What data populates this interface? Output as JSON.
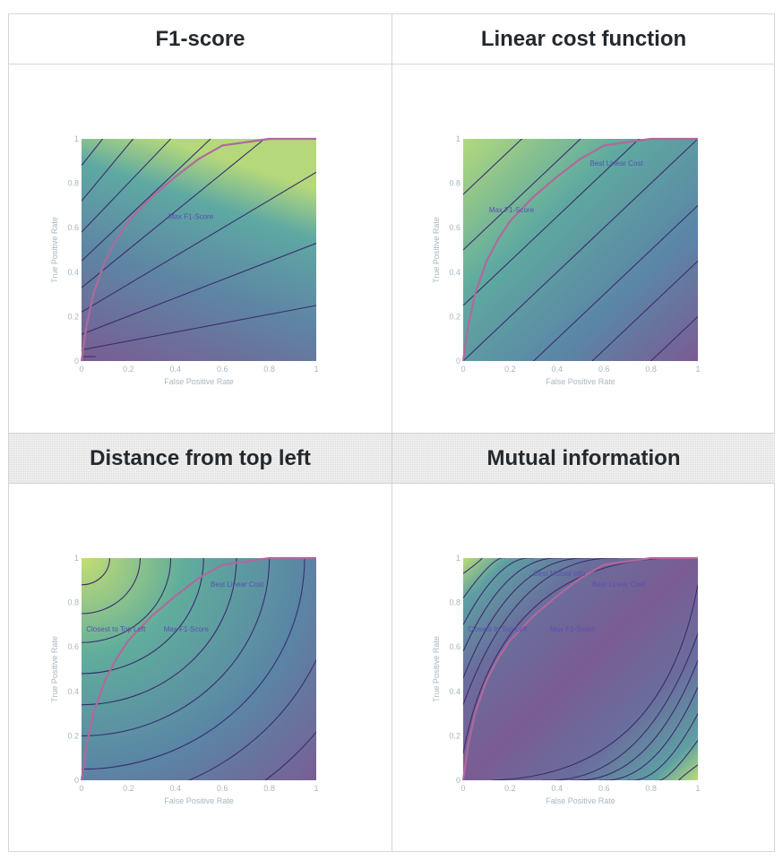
{
  "panels": [
    {
      "header": "F1-score"
    },
    {
      "header": "Linear cost function"
    },
    {
      "header": "Distance from top left"
    },
    {
      "header": "Mutual information"
    }
  ],
  "colors": {
    "text": "#24292e",
    "border": "#d6d6d6",
    "axis_text": "#a7b7bf",
    "contour": "#3b2d6e",
    "roc_curve": "#b0699a",
    "annotation": "#5a4fb0"
  },
  "chart_data": [
    {
      "type": "heatmap",
      "xlabel": "False Positive Rate",
      "ylabel": "True Positive Rate",
      "xlim": [
        0,
        1
      ],
      "ylim": [
        0,
        1
      ],
      "ticks": [
        "0",
        "0.2",
        "0.4",
        "0.6",
        "0.8",
        "1"
      ],
      "roc_curve": {
        "x": [
          0,
          0.02,
          0.05,
          0.1,
          0.15,
          0.2,
          0.3,
          0.4,
          0.5,
          0.6,
          0.8,
          1
        ],
        "y": [
          0,
          0.15,
          0.3,
          0.45,
          0.55,
          0.63,
          0.74,
          0.83,
          0.91,
          0.97,
          1,
          1
        ]
      },
      "annotations": [
        {
          "text": "Max F1-Score",
          "x": 0.37,
          "y": 0.64
        }
      ]
    },
    {
      "type": "heatmap",
      "xlabel": "False Positive Rate",
      "ylabel": "True Positive Rate",
      "xlim": [
        0,
        1
      ],
      "ylim": [
        0,
        1
      ],
      "ticks": [
        "0",
        "0.2",
        "0.4",
        "0.6",
        "0.8",
        "1"
      ],
      "roc_curve": {
        "x": [
          0,
          0.02,
          0.05,
          0.1,
          0.15,
          0.2,
          0.3,
          0.4,
          0.5,
          0.6,
          0.8,
          1
        ],
        "y": [
          0,
          0.15,
          0.3,
          0.45,
          0.55,
          0.63,
          0.74,
          0.83,
          0.91,
          0.97,
          1,
          1
        ]
      },
      "annotations": [
        {
          "text": "Max F1-Score",
          "x": 0.11,
          "y": 0.67
        },
        {
          "text": "Best Linear Cost",
          "x": 0.54,
          "y": 0.88
        }
      ]
    },
    {
      "type": "heatmap",
      "xlabel": "False Positive Rate",
      "ylabel": "True Positive Rate",
      "xlim": [
        0,
        1
      ],
      "ylim": [
        0,
        1
      ],
      "ticks": [
        "0",
        "0.2",
        "0.4",
        "0.6",
        "0.8",
        "1"
      ],
      "roc_curve": {
        "x": [
          0,
          0.02,
          0.05,
          0.1,
          0.15,
          0.2,
          0.3,
          0.4,
          0.5,
          0.6,
          0.8,
          1
        ],
        "y": [
          0,
          0.15,
          0.3,
          0.45,
          0.55,
          0.63,
          0.74,
          0.83,
          0.91,
          0.97,
          1,
          1
        ]
      },
      "annotations": [
        {
          "text": "Closest to Top Left",
          "x": 0.02,
          "y": 0.67
        },
        {
          "text": "Max F1-Score",
          "x": 0.35,
          "y": 0.67
        },
        {
          "text": "Best Linear Cost",
          "x": 0.55,
          "y": 0.87
        }
      ]
    },
    {
      "type": "heatmap",
      "xlabel": "False Positive Rate",
      "ylabel": "True Positive Rate",
      "xlim": [
        0,
        1
      ],
      "ylim": [
        0,
        1
      ],
      "ticks": [
        "0",
        "0.2",
        "0.4",
        "0.6",
        "0.8",
        "1"
      ],
      "roc_curve": {
        "x": [
          0,
          0.02,
          0.05,
          0.1,
          0.15,
          0.2,
          0.3,
          0.4,
          0.5,
          0.6,
          0.8,
          1
        ],
        "y": [
          0,
          0.15,
          0.3,
          0.45,
          0.55,
          0.63,
          0.74,
          0.83,
          0.91,
          0.97,
          1,
          1
        ]
      },
      "annotations": [
        {
          "text": "Best Mutual Info",
          "x": 0.3,
          "y": 0.92
        },
        {
          "text": "Best Linear Cost",
          "x": 0.55,
          "y": 0.87
        },
        {
          "text": "Closest to Top Left",
          "x": 0.02,
          "y": 0.67
        },
        {
          "text": "Max F1-Score",
          "x": 0.37,
          "y": 0.67
        }
      ]
    }
  ]
}
